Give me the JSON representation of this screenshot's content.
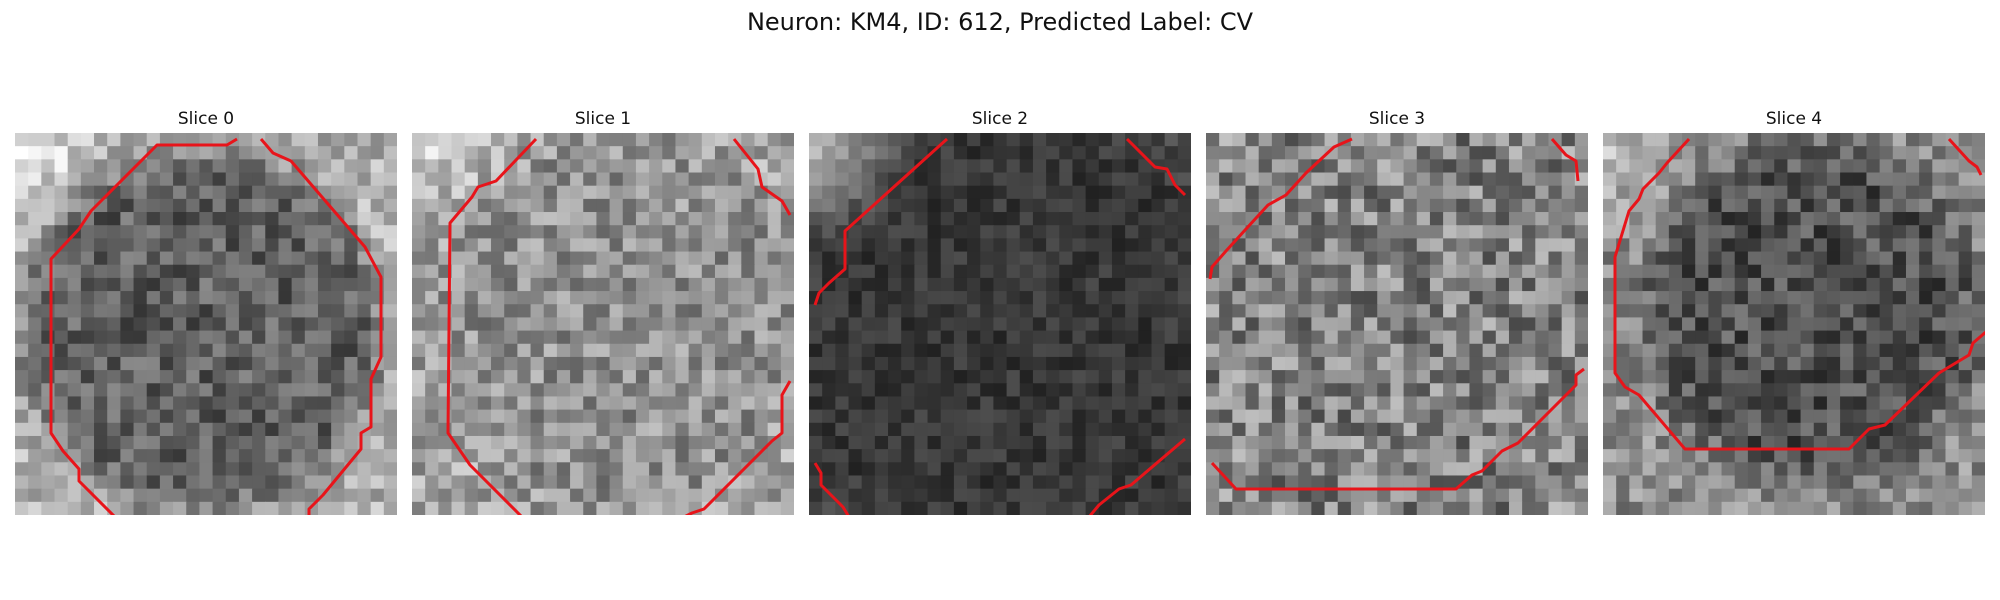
{
  "figure": {
    "title": "Neuron: KM4, ID: 612, Predicted Label: CV"
  },
  "panels": [
    {
      "title": "Slice 0"
    },
    {
      "title": "Slice 1"
    },
    {
      "title": "Slice 2"
    },
    {
      "title": "Slice 3"
    },
    {
      "title": "Slice 4"
    }
  ],
  "style": {
    "contour_color": "#e8141a",
    "background": "#ffffff"
  }
}
